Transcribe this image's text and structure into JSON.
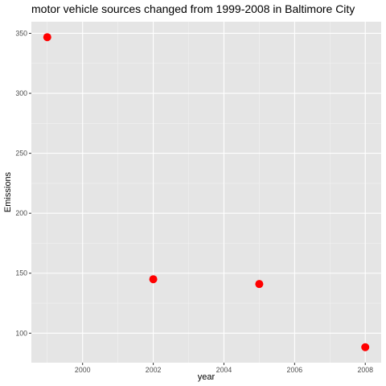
{
  "chart_data": {
    "type": "scatter",
    "title": "motor vehicle sources changed from 1999-2008 in Baltimore City",
    "xlabel": "year",
    "ylabel": "Emissions",
    "x": [
      1999,
      2002,
      2005,
      2008
    ],
    "y": [
      346.82,
      145.0,
      141.0,
      88.3
    ],
    "xlim": [
      1998.55,
      2008.45
    ],
    "ylim": [
      75.4,
      359.7
    ],
    "x_ticks": [
      2000,
      2002,
      2004,
      2006,
      2008
    ],
    "y_ticks": [
      100,
      150,
      200,
      250,
      300,
      350
    ],
    "x_tick_labels": [
      "2000",
      "2002",
      "2004",
      "2006",
      "2008"
    ],
    "y_tick_labels": [
      "100",
      "150",
      "200",
      "250",
      "300",
      "350"
    ],
    "grid": true,
    "legend": "none",
    "colors": {
      "point": "#ff0000",
      "panel": "#e5e5e5",
      "grid_major": "#ffffff",
      "grid_minor": "#f2f2f2",
      "tick_label": "#4d4d4d",
      "tick_mark": "#333333"
    }
  }
}
